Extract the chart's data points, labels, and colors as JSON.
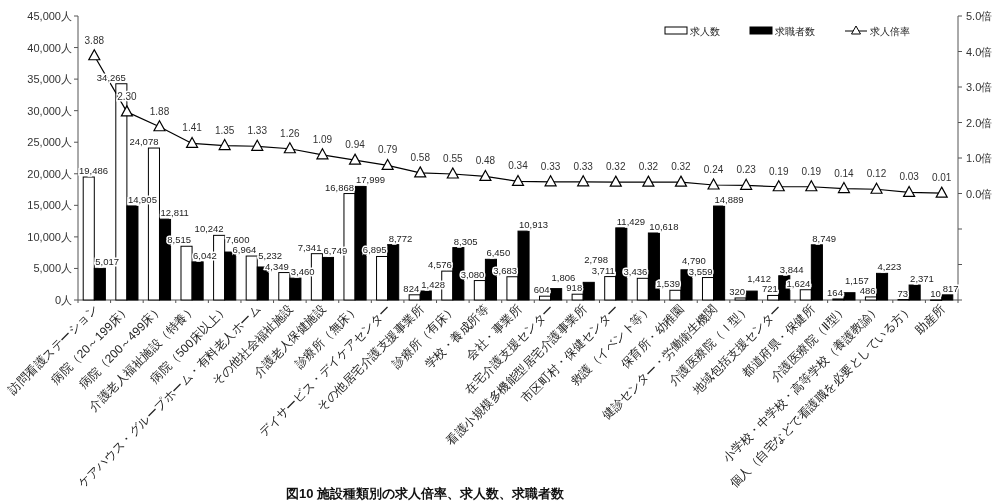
{
  "chart_data": {
    "type": "bar",
    "title": "図10 施設種類別の求人倍率、求人数、求職者数",
    "categories": [
      "訪問看護ステーション",
      "病院（20～199床）",
      "病院（200～499床）",
      "介護老人福祉施設（特養）",
      "病院（500床以上）",
      "ケアハウス・グループホーム・有料老人ホーム",
      "その他社会福祉施設",
      "介護老人保健施設",
      "診療所（無床）",
      "デイサービス・デイケアセンター",
      "その他居宅介護支援事業所",
      "診療所（有床）",
      "学校・養成所等",
      "会社・事業所",
      "在宅介護支援センター",
      "看護小規模多機能型居宅介護事業所",
      "市区町村・保健センター",
      "救護（イベント等）",
      "保育所・幼稚園",
      "健診センター・労働衛生機関",
      "介護医療院（Ｉ型）",
      "地域包括支援センター",
      "都道府県・保健所",
      "介護医療院（Ⅱ型）",
      "小学校・中学校・高等学校（養護教諭）",
      "個人（自宅などで看護職を必要としている方）",
      "助産所"
    ],
    "series": [
      {
        "name": "求人数",
        "color": "#ffffff",
        "values": [
          19486,
          34265,
          24078,
          8515,
          10242,
          6964,
          4349,
          7341,
          16868,
          6895,
          824,
          4576,
          3080,
          3683,
          604,
          918,
          3711,
          3436,
          1539,
          3559,
          320,
          721,
          1624,
          164,
          486,
          73,
          10
        ],
        "value_labels": [
          "19,486",
          "34,265",
          "24,078",
          "8,515",
          "10,242",
          "6,964",
          "4,349",
          "7,341",
          "16,868",
          "6,895",
          "824",
          "4,576",
          "3,080",
          "3,683",
          "604",
          "918",
          "3,711",
          "3,436",
          "1,539",
          "3,559",
          "320",
          "721",
          "1,624",
          "164",
          "486",
          "73",
          "10"
        ]
      },
      {
        "name": "求職者数",
        "color": "#000000",
        "values": [
          5017,
          14905,
          12811,
          6042,
          7600,
          5232,
          3460,
          6749,
          17999,
          8772,
          1428,
          8305,
          6450,
          10913,
          1806,
          2798,
          11429,
          10618,
          4790,
          14889,
          1412,
          3844,
          8749,
          1157,
          4223,
          2371,
          817
        ],
        "value_labels": [
          "5,017",
          "14,905",
          "12,811",
          "6,042",
          "7,600",
          "5,232",
          "3,460",
          "6,749",
          "17,999",
          "8,772",
          "1,428",
          "8,305",
          "6,450",
          "10,913",
          "1,806",
          "2,798",
          "11,429",
          "10,618",
          "4,790",
          "14,889",
          "1,412",
          "3,844",
          "8,749",
          "1,157",
          "4,223",
          "2,371",
          "817"
        ]
      },
      {
        "name": "求人倍率",
        "type": "line",
        "axis": "y2",
        "color": "#000000",
        "values": [
          3.88,
          2.3,
          1.88,
          1.41,
          1.35,
          1.33,
          1.26,
          1.09,
          0.94,
          0.79,
          0.58,
          0.55,
          0.48,
          0.34,
          0.33,
          0.33,
          0.32,
          0.32,
          0.32,
          0.24,
          0.23,
          0.19,
          0.19,
          0.14,
          0.12,
          0.03,
          0.01
        ],
        "value_labels": [
          "3.88",
          "2.30",
          "1.88",
          "1.41",
          "1.35",
          "1.33",
          "1.26",
          "1.09",
          "0.94",
          "0.79",
          "0.58",
          "0.55",
          "0.48",
          "0.34",
          "0.33",
          "0.33",
          "0.32",
          "0.32",
          "0.32",
          "0.24",
          "0.23",
          "0.19",
          "0.19",
          "0.14",
          "0.12",
          "0.03",
          "0.01"
        ]
      }
    ],
    "ylim": [
      0,
      45000
    ],
    "yticks": [
      {
        "value": 0,
        "label": "0人"
      },
      {
        "value": 5000,
        "label": "5,000人"
      },
      {
        "value": 10000,
        "label": "10,000人"
      },
      {
        "value": 15000,
        "label": "15,000人"
      },
      {
        "value": 20000,
        "label": "20,000人"
      },
      {
        "value": 25000,
        "label": "25,000人"
      },
      {
        "value": 30000,
        "label": "30,000人"
      },
      {
        "value": 35000,
        "label": "35,000人"
      },
      {
        "value": 40000,
        "label": "40,000人"
      },
      {
        "value": 45000,
        "label": "45,000人"
      }
    ],
    "y2lim": [
      -3,
      5
    ],
    "y2ticks": [
      {
        "value": -3,
        "label": null
      },
      {
        "value": -2,
        "label": null
      },
      {
        "value": -1,
        "label": null
      },
      {
        "value": 0,
        "label": "0.0倍"
      },
      {
        "value": 1,
        "label": "1.0倍"
      },
      {
        "value": 2,
        "label": "2.0倍"
      },
      {
        "value": 3,
        "label": "3.0倍"
      },
      {
        "value": 4,
        "label": "4.0倍"
      },
      {
        "value": 5,
        "label": "5.0倍"
      }
    ],
    "legend": "top right",
    "marker": "triangle",
    "line_style": "solid",
    "grid": false
  }
}
